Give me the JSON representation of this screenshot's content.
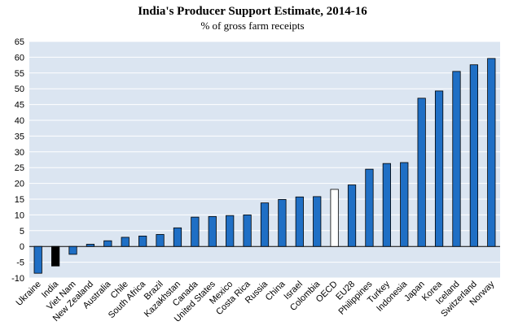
{
  "chart_data": {
    "type": "bar",
    "title": "India's Producer Support Estimate, 2014-16",
    "subtitle": "% of gross farm receipts",
    "xlabel": "",
    "ylabel": "",
    "ylim": [
      -10,
      65
    ],
    "yticks": [
      -10,
      -5,
      0,
      5,
      10,
      15,
      20,
      25,
      30,
      35,
      40,
      45,
      50,
      55,
      60,
      65
    ],
    "grid": true,
    "categories": [
      "Ukraine",
      "India",
      "Viet Nam",
      "New Zealand",
      "Australia",
      "Chile",
      "South Africa",
      "Brazil",
      "Kazakhstan",
      "Canada",
      "United States",
      "Mexico",
      "Costa Rica",
      "Russia",
      "China",
      "Israel",
      "Colombia",
      "OECD",
      "EU28",
      "Philippines",
      "Turkey",
      "Indonesia",
      "Japan",
      "Korea",
      "Iceland",
      "Switzerland",
      "Norway"
    ],
    "values": [
      -8.5,
      -6.2,
      -2.5,
      0.7,
      1.8,
      2.9,
      3.3,
      3.8,
      5.9,
      9.3,
      9.5,
      9.8,
      10.0,
      13.8,
      14.9,
      15.7,
      15.8,
      18.1,
      19.5,
      24.5,
      26.3,
      26.6,
      47.0,
      49.3,
      55.5,
      57.6,
      59.6
    ],
    "colors": {
      "default": "#1f6fc5",
      "India": "#000000",
      "OECD": "#ffffff",
      "plot_background": "#dbe5f1",
      "gridline": "#ffffff",
      "bar_outline": "#000000"
    }
  }
}
